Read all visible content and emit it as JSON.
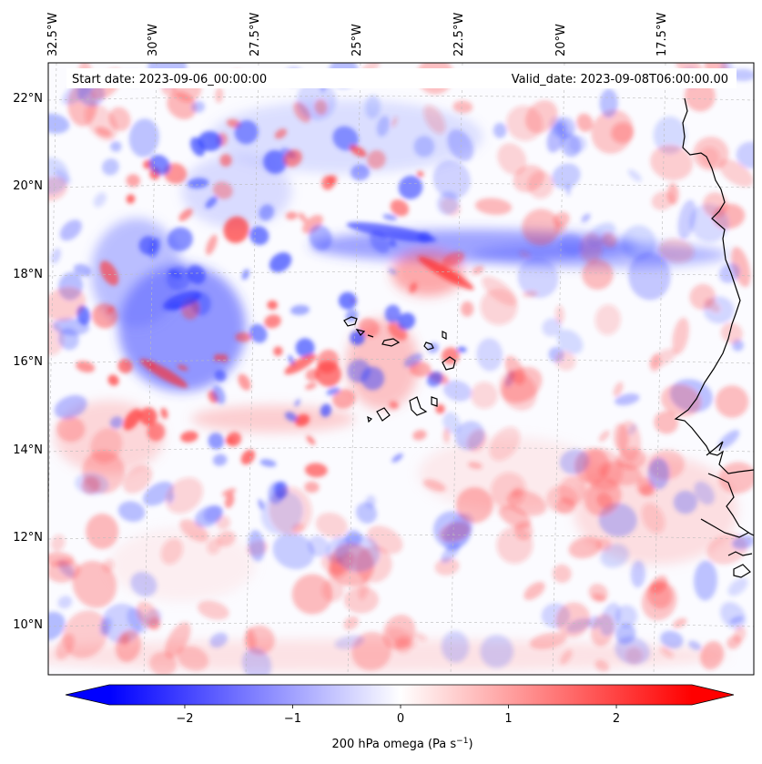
{
  "header": {
    "start_date": "Start date: 2023-09-06_00:00:00",
    "valid_date": "Valid_date: 2023-09-08T06:00:00.00"
  },
  "map": {
    "lon_labels": [
      "32.5°W",
      "30°W",
      "27.5°W",
      "25°W",
      "22.5°W",
      "20°W",
      "17.5°W"
    ],
    "lat_labels": [
      "22°N",
      "20°N",
      "18°N",
      "16°N",
      "14°N",
      "12°N",
      "10°N"
    ],
    "field_colors": {
      "negative": "#0000ff",
      "zero": "#ffffff",
      "positive": "#ff0000"
    },
    "coastline_color": "#000000",
    "grid": true
  },
  "colorbar": {
    "ticks": [
      "−2",
      "−1",
      "0",
      "1",
      "2"
    ],
    "label_main": "200 hPa omega (Pa s",
    "label_sup": "−1",
    "label_end": ")",
    "range": [
      -2.7,
      2.7
    ],
    "extend": "both"
  }
}
